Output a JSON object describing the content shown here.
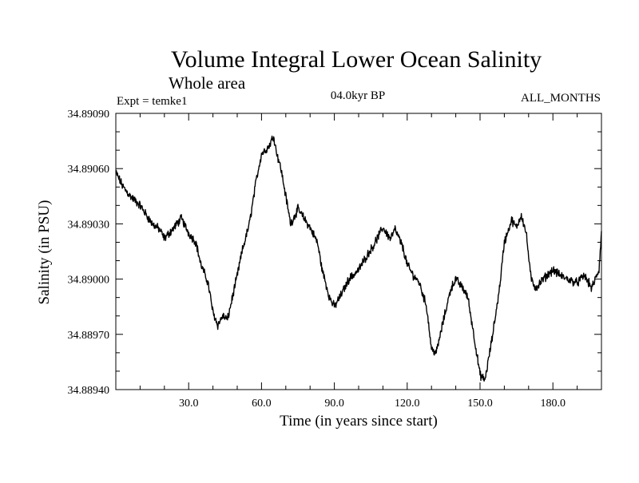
{
  "chart_data": {
    "type": "line",
    "title": "Volume Integral Lower Ocean Salinity",
    "subtitle": "Whole area",
    "expt_label": "Expt = temke1",
    "period_label": "04.0kyr BP",
    "months_label": "ALL_MONTHS",
    "xlabel": "Time (in years since start)",
    "ylabel": "Salinity (in PSU)",
    "xlim": [
      0,
      200
    ],
    "ylim": [
      34.8894,
      34.8909
    ],
    "x_ticks": [
      30,
      60,
      90,
      120,
      150,
      180
    ],
    "x_tick_labels": [
      "30.0",
      "60.0",
      "90.0",
      "120.0",
      "150.0",
      "180.0"
    ],
    "y_ticks": [
      34.8894,
      34.8897,
      34.89,
      34.8903,
      34.8906,
      34.8909
    ],
    "y_tick_labels": [
      "34.88940",
      "34.88970",
      "34.89000",
      "34.89030",
      "34.89060",
      "34.89090"
    ],
    "series": [
      {
        "name": "salinity",
        "x": [
          0,
          3,
          6,
          10,
          15,
          18,
          20,
          24,
          27,
          30,
          33,
          35,
          38,
          40,
          42,
          44,
          46,
          48,
          50,
          52,
          55,
          58,
          60,
          63,
          65,
          66,
          68,
          70,
          72,
          75,
          78,
          80,
          83,
          85,
          88,
          90,
          93,
          96,
          100,
          103,
          106,
          110,
          113,
          115,
          118,
          120,
          122,
          125,
          128,
          130,
          132,
          135,
          138,
          140,
          143,
          145,
          148,
          150,
          152,
          155,
          158,
          160,
          163,
          165,
          167,
          169,
          171,
          173,
          176,
          180,
          183,
          186,
          190,
          193,
          196,
          199,
          200
        ],
        "y": [
          34.89058,
          34.8905,
          34.89045,
          34.8904,
          34.8903,
          34.89027,
          34.89022,
          34.89028,
          34.89033,
          34.89025,
          34.8902,
          34.89008,
          34.88998,
          34.88982,
          34.88975,
          34.8898,
          34.88978,
          34.8899,
          34.89002,
          34.89015,
          34.8903,
          34.89055,
          34.89068,
          34.89072,
          34.89078,
          34.8907,
          34.8906,
          34.89045,
          34.8903,
          34.89038,
          34.89032,
          34.89028,
          34.8902,
          34.89005,
          34.8899,
          34.88985,
          34.88992,
          34.89,
          34.89005,
          34.89012,
          34.89018,
          34.89028,
          34.89022,
          34.89027,
          34.89018,
          34.89008,
          34.89003,
          34.88998,
          34.88985,
          34.88962,
          34.8896,
          34.88978,
          34.88995,
          34.89,
          34.88995,
          34.8899,
          34.88965,
          34.88948,
          34.88945,
          34.88968,
          34.88995,
          34.8902,
          34.89032,
          34.89028,
          34.89035,
          34.89025,
          34.89,
          34.88995,
          34.89,
          34.89005,
          34.89002,
          34.89,
          34.88998,
          34.89002,
          34.88995,
          34.89005,
          34.89025
        ]
      }
    ]
  }
}
